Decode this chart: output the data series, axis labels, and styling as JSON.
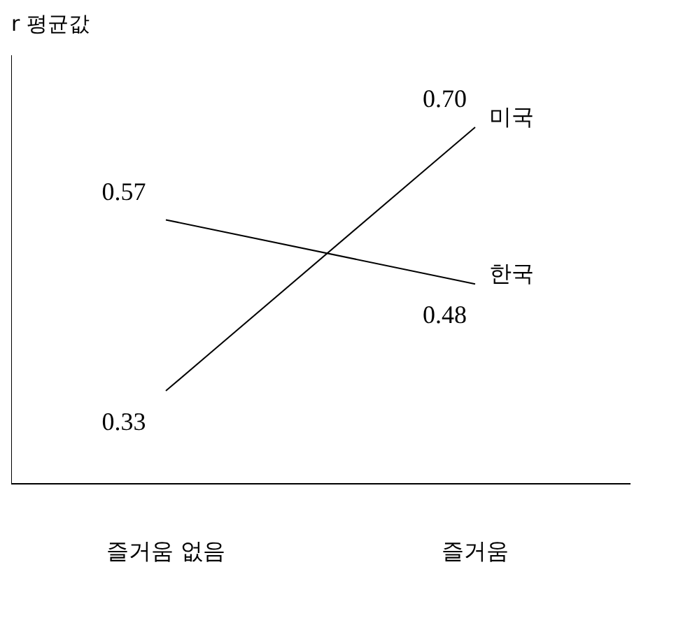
{
  "chart_data": {
    "type": "line",
    "ylabel": "r 평균값",
    "categories": [
      "즐거움 없음",
      "즐거움"
    ],
    "series": [
      {
        "name": "미국",
        "color": "#000000",
        "values": [
          0.33,
          0.7
        ],
        "value_labels": [
          "0.33",
          "0.70"
        ]
      },
      {
        "name": "한국",
        "color": "#000000",
        "values": [
          0.57,
          0.48
        ],
        "value_labels": [
          "0.57",
          "0.48"
        ]
      }
    ],
    "legend": false,
    "grid": false,
    "marker": "none",
    "tick_labels": "x"
  }
}
